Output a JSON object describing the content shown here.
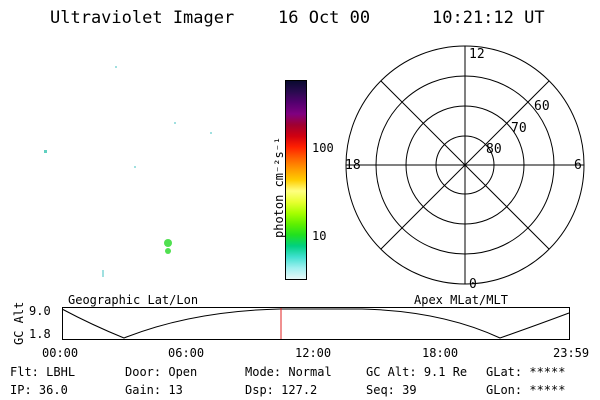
{
  "header": {
    "title": "Ultraviolet Imager",
    "date": "16 Oct 00",
    "time": "10:21:12 UT"
  },
  "colorbar": {
    "label": "photon cm⁻²s⁻¹",
    "ticks": [
      "100",
      "10"
    ],
    "colors": [
      "#0a0a30",
      "#2a0a50",
      "#550070",
      "#800080",
      "#a00030",
      "#d00010",
      "#ff2000",
      "#ff6000",
      "#ff9900",
      "#ffcc00",
      "#ffff80",
      "#e8ff30",
      "#a8ff00",
      "#60f000",
      "#20e020",
      "#00d080",
      "#40e0d0",
      "#a0f0f0",
      "#e8f8f8"
    ]
  },
  "polar": {
    "labels": {
      "top": "12",
      "bottom": "0",
      "left": "18",
      "right": "6"
    },
    "rings": [
      "60",
      "70",
      "80"
    ]
  },
  "timeline": {
    "left_label": "Geographic Lat/Lon",
    "right_label": "Apex MLat/MLT",
    "axis_label": "GC Alt",
    "y_ticks": [
      "9.0",
      "1.8"
    ],
    "x_ticks": [
      "00:00",
      "06:00",
      "12:00",
      "18:00",
      "23:59"
    ]
  },
  "info": {
    "row1": [
      {
        "key": "Flt:",
        "value": "LBHL"
      },
      {
        "key": "Door:",
        "value": "Open"
      },
      {
        "key": "Mode:",
        "value": "Normal"
      },
      {
        "key": "GC Alt:",
        "value": "9.1 Re"
      },
      {
        "key": "GLat:",
        "value": "*****"
      }
    ],
    "row2": [
      {
        "key": "IP:",
        "value": "36.0"
      },
      {
        "key": "Gain:",
        "value": "13"
      },
      {
        "key": "Dsp:",
        "value": "127.2"
      },
      {
        "key": "Seq:",
        "value": "39"
      },
      {
        "key": "GLon:",
        "value": "*****"
      }
    ]
  }
}
